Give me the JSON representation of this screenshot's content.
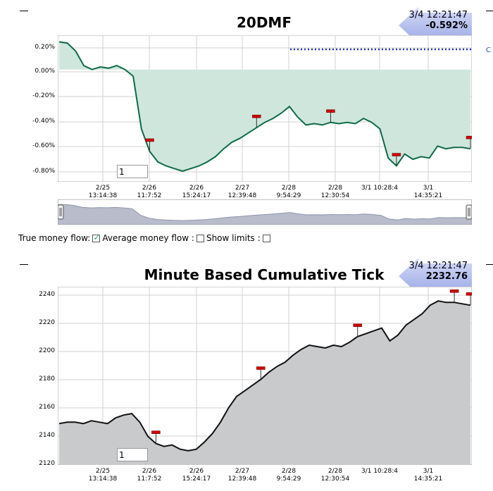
{
  "chart_data": [
    {
      "type": "area",
      "title": "20DMF",
      "x_ticks": [
        [
          "2/25",
          "13:14:38"
        ],
        [
          "2/26",
          "11:7:52"
        ],
        [
          "2/26",
          "15:24:17"
        ],
        [
          "2/27",
          "12:39:48"
        ],
        [
          "2/28",
          "9:54:29"
        ],
        [
          "2/28",
          "12:30:54"
        ],
        [
          "3/1 10:28:4",
          ""
        ],
        [
          "3/1",
          "14:35:21"
        ]
      ],
      "y_ticks": [
        "0.20%",
        "0.00%",
        "-0.20%",
        "-0.40%",
        "-0.60%",
        "-0.80%"
      ],
      "ylim": [
        -0.85,
        0.26
      ],
      "baseline": 0,
      "series": [
        {
          "values": [
            0.21,
            0.2,
            0.14,
            0.03,
            0.0,
            0.02,
            0.01,
            0.03,
            0.0,
            -0.05,
            -0.45,
            -0.62,
            -0.7,
            -0.73,
            -0.75,
            -0.77,
            -0.75,
            -0.73,
            -0.7,
            -0.66,
            -0.6,
            -0.55,
            -0.52,
            -0.48,
            -0.44,
            -0.4,
            -0.37,
            -0.33,
            -0.28,
            -0.36,
            -0.42,
            -0.41,
            -0.42,
            -0.4,
            -0.41,
            -0.4,
            -0.41,
            -0.37,
            -0.4,
            -0.45,
            -0.67,
            -0.73,
            -0.64,
            -0.68,
            -0.66,
            -0.67,
            -0.58,
            -0.6,
            -0.59,
            -0.59,
            -0.6
          ]
        }
      ],
      "flags": [
        11,
        24,
        33,
        41,
        50
      ],
      "badge": {
        "time": "3/4 12:21:47",
        "value": "-0.592%"
      },
      "overflow_label": "C",
      "grid": true
    },
    {
      "type": "area",
      "title": "Minute Based Cumulative Tick",
      "x_ticks": [
        [
          "2/25",
          "13:14:38"
        ],
        [
          "2/26",
          "11:7:52"
        ],
        [
          "2/26",
          "15:24:17"
        ],
        [
          "2/27",
          "12:39:48"
        ],
        [
          "2/28",
          "9:54:29"
        ],
        [
          "2/28",
          "12:30:54"
        ],
        [
          "3/1 10:28:4",
          ""
        ],
        [
          "3/1",
          "14:35:21"
        ]
      ],
      "y_ticks": [
        "2240",
        "2220",
        "2200",
        "2180",
        "2160",
        "2140",
        "2120"
      ],
      "ylim": [
        2120,
        2245
      ],
      "series": [
        {
          "values": [
            2149,
            2150,
            2150,
            2149,
            2151,
            2150,
            2149,
            2153,
            2155,
            2156,
            2150,
            2140,
            2135,
            2133,
            2134,
            2131,
            2130,
            2131,
            2136,
            2142,
            2150,
            2160,
            2168,
            2172,
            2176,
            2180,
            2185,
            2189,
            2192,
            2197,
            2201,
            2204,
            2203,
            2202,
            2204,
            2203,
            2206,
            2210,
            2212,
            2214,
            2216,
            2207,
            2211,
            2218,
            2222,
            2226,
            2232,
            2235,
            2234,
            2234,
            2233,
            2232
          ]
        }
      ],
      "flags": [
        12,
        25,
        37,
        49,
        57
      ],
      "badge": {
        "time": "3/4 12:21:47",
        "value": "2232.76"
      },
      "grid": true
    }
  ],
  "chart1": {
    "title": "20DMF",
    "badge_time": "3/4 12:21:47",
    "badge_value": "-0.592%",
    "input_value": "1"
  },
  "chart2": {
    "title": "Minute Based Cumulative Tick",
    "badge_time": "3/4 12:21:47",
    "badge_value": "2232.76",
    "input_value": "1"
  },
  "controls": {
    "true_money_flow": "True money flow:",
    "average_money_flow": "Average money flow :",
    "show_limits": "Show limits :",
    "true_money_flow_checked": true,
    "average_money_flow_checked": false,
    "show_limits_checked": false
  },
  "colors": {
    "area_fill_1": "#cfe6dd",
    "line_1": "#0e6b47",
    "area_fill_2": "#c9cacc",
    "line_2": "#111111",
    "badge_arrow": "#b7c3ef",
    "flag": "#cc0000",
    "dotted_line": "#2233bb"
  }
}
